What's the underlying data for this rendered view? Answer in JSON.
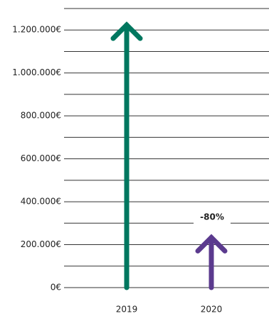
{
  "chart_data": {
    "type": "arrow",
    "categories": [
      "2019",
      "2020"
    ],
    "series": [
      {
        "name": "revenue",
        "colors": [
          "#00775f",
          "#5b3a8e"
        ],
        "values": [
          1230000,
          240000
        ]
      }
    ],
    "ylim": [
      0,
      1300000
    ],
    "yticks": [
      {
        "value": 0,
        "label": "0€"
      },
      {
        "value": 200000,
        "label": "200.000€"
      },
      {
        "value": 400000,
        "label": "400.000€"
      },
      {
        "value": 600000,
        "label": "600.000€"
      },
      {
        "value": 800000,
        "label": "800.000€"
      },
      {
        "value": 1000000,
        "label": "1.000.000€"
      },
      {
        "value": 1200000,
        "label": "1.200.000€"
      }
    ],
    "ygrid": [
      0,
      100000,
      200000,
      300000,
      400000,
      500000,
      600000,
      700000,
      800000,
      900000,
      1000000,
      1100000,
      1200000,
      1300000
    ],
    "annotation": "-80%"
  }
}
